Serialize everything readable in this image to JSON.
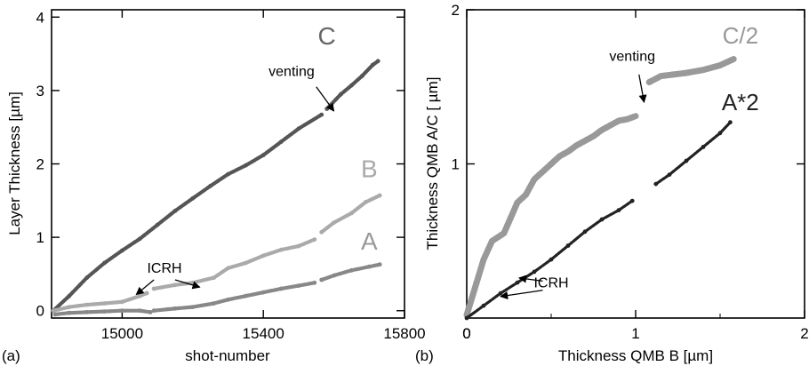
{
  "chart_data": [
    {
      "type": "scatter",
      "panel_label": "(a)",
      "xlabel": "shot-number",
      "ylabel": "Layer Thickness [µm]",
      "xlim": [
        14800,
        15800
      ],
      "ylim": [
        -0.1,
        4.1
      ],
      "xticks": [
        15000,
        15400,
        15800
      ],
      "yticks": [
        0,
        1,
        2,
        3,
        4
      ],
      "series": [
        {
          "name": "C",
          "color": "#555555",
          "segments": [
            [
              [
                14805,
                0.0
              ],
              [
                14850,
                0.2
              ],
              [
                14900,
                0.45
              ],
              [
                14950,
                0.65
              ],
              [
                15000,
                0.82
              ],
              [
                15050,
                0.98
              ],
              [
                15100,
                1.17
              ],
              [
                15150,
                1.36
              ],
              [
                15200,
                1.53
              ],
              [
                15250,
                1.7
              ],
              [
                15300,
                1.86
              ],
              [
                15350,
                1.98
              ],
              [
                15400,
                2.12
              ],
              [
                15450,
                2.3
              ],
              [
                15500,
                2.48
              ],
              [
                15565,
                2.67
              ]
            ],
            [
              [
                15580,
                2.75
              ],
              [
                15620,
                2.95
              ],
              [
                15650,
                3.07
              ],
              [
                15680,
                3.2
              ],
              [
                15710,
                3.35
              ],
              [
                15725,
                3.4
              ]
            ]
          ]
        },
        {
          "name": "B",
          "color": "#aaaaaa",
          "segments": [
            [
              [
                14805,
                0.0
              ],
              [
                14850,
                0.05
              ],
              [
                14900,
                0.08
              ],
              [
                14950,
                0.1
              ],
              [
                15000,
                0.12
              ],
              [
                15050,
                0.2
              ],
              [
                15070,
                0.24
              ]
            ],
            [
              [
                15090,
                0.3
              ],
              [
                15150,
                0.35
              ],
              [
                15200,
                0.38
              ],
              [
                15260,
                0.45
              ],
              [
                15300,
                0.58
              ],
              [
                15350,
                0.65
              ],
              [
                15400,
                0.75
              ],
              [
                15450,
                0.83
              ],
              [
                15500,
                0.88
              ],
              [
                15545,
                0.97
              ]
            ],
            [
              [
                15565,
                1.07
              ],
              [
                15600,
                1.2
              ],
              [
                15650,
                1.33
              ],
              [
                15690,
                1.48
              ],
              [
                15730,
                1.57
              ]
            ]
          ]
        },
        {
          "name": "A",
          "color": "#888888",
          "segments": [
            [
              [
                14810,
                -0.05
              ],
              [
                14850,
                -0.03
              ],
              [
                14900,
                -0.02
              ],
              [
                14950,
                -0.01
              ],
              [
                15000,
                0.0
              ],
              [
                15050,
                0.0
              ],
              [
                15080,
                -0.02
              ]
            ],
            [
              [
                15090,
                0.0
              ],
              [
                15150,
                0.03
              ],
              [
                15200,
                0.05
              ],
              [
                15260,
                0.1
              ],
              [
                15300,
                0.15
              ],
              [
                15350,
                0.2
              ],
              [
                15400,
                0.25
              ],
              [
                15450,
                0.3
              ],
              [
                15500,
                0.34
              ],
              [
                15545,
                0.38
              ]
            ],
            [
              [
                15565,
                0.42
              ],
              [
                15600,
                0.48
              ],
              [
                15650,
                0.55
              ],
              [
                15700,
                0.6
              ],
              [
                15730,
                0.63
              ]
            ]
          ]
        }
      ],
      "series_labels": [
        {
          "text": "C",
          "x": 15580,
          "y": 3.63,
          "color": "#666666"
        },
        {
          "text": "B",
          "x": 15700,
          "y": 1.82,
          "color": "#aaaaaa"
        },
        {
          "text": "A",
          "x": 15700,
          "y": 0.83,
          "color": "#999999"
        }
      ],
      "annotations": [
        {
          "text": "venting",
          "x": 15480,
          "y": 3.2,
          "arrows": [
            {
              "from": [
                15550,
                3.05
              ],
              "to": [
                15600,
                2.72
              ]
            }
          ]
        },
        {
          "text": "ICRH",
          "x": 15120,
          "y": 0.52,
          "arrows": [
            {
              "from": [
                15090,
                0.42
              ],
              "to": [
                15040,
                0.22
              ]
            },
            {
              "from": [
                15150,
                0.42
              ],
              "to": [
                15220,
                0.32
              ]
            }
          ]
        }
      ]
    },
    {
      "type": "scatter",
      "panel_label": "(b)",
      "xlabel": "Thickness QMB B [µm]",
      "ylabel": "Thickness QMB  A/C [ µm]",
      "xlim": [
        0,
        2
      ],
      "ylim": [
        0,
        2
      ],
      "xticks": [
        0,
        1,
        2
      ],
      "yticks": [
        1,
        2
      ],
      "series": [
        {
          "name": "C/2",
          "color": "#999999",
          "segments": [
            [
              [
                0.0,
                0.02
              ],
              [
                0.05,
                0.2
              ],
              [
                0.1,
                0.38
              ],
              [
                0.15,
                0.5
              ],
              [
                0.22,
                0.55
              ],
              [
                0.3,
                0.75
              ],
              [
                0.35,
                0.8
              ],
              [
                0.4,
                0.9
              ],
              [
                0.45,
                0.95
              ],
              [
                0.5,
                1.0
              ],
              [
                0.55,
                1.05
              ],
              [
                0.6,
                1.08
              ],
              [
                0.65,
                1.12
              ],
              [
                0.7,
                1.15
              ],
              [
                0.75,
                1.18
              ],
              [
                0.8,
                1.22
              ],
              [
                0.85,
                1.25
              ],
              [
                0.9,
                1.28
              ],
              [
                0.95,
                1.29
              ],
              [
                1.0,
                1.31
              ]
            ],
            [
              [
                1.08,
                1.53
              ],
              [
                1.15,
                1.57
              ],
              [
                1.3,
                1.59
              ],
              [
                1.4,
                1.61
              ],
              [
                1.5,
                1.64
              ],
              [
                1.58,
                1.68
              ]
            ]
          ]
        },
        {
          "name": "A*2",
          "color": "#222222",
          "segments": [
            [
              [
                0.0,
                0.0
              ],
              [
                0.1,
                0.08
              ],
              [
                0.2,
                0.16
              ],
              [
                0.3,
                0.23
              ],
              [
                0.4,
                0.3
              ],
              [
                0.5,
                0.38
              ],
              [
                0.6,
                0.47
              ],
              [
                0.7,
                0.56
              ],
              [
                0.8,
                0.64
              ],
              [
                0.9,
                0.7
              ],
              [
                0.98,
                0.76
              ]
            ],
            [
              [
                1.12,
                0.87
              ],
              [
                1.2,
                0.93
              ],
              [
                1.3,
                1.02
              ],
              [
                1.4,
                1.11
              ],
              [
                1.5,
                1.2
              ],
              [
                1.56,
                1.27
              ]
            ]
          ]
        }
      ],
      "series_labels": [
        {
          "text": "C/2",
          "x": 1.62,
          "y": 1.78,
          "color": "#999999"
        },
        {
          "text": "A*2",
          "x": 1.62,
          "y": 1.35,
          "color": "#222222"
        }
      ],
      "annotations": [
        {
          "text": "venting",
          "x": 0.98,
          "y": 1.67,
          "arrows": [
            {
              "from": [
                1.02,
                1.58
              ],
              "to": [
                1.05,
                1.4
              ]
            }
          ]
        },
        {
          "text": "ICRH",
          "x": 0.5,
          "y": 0.2,
          "arrows": [
            {
              "from": [
                0.45,
                0.24
              ],
              "to": [
                0.31,
                0.26
              ]
            },
            {
              "from": [
                0.45,
                0.18
              ],
              "to": [
                0.2,
                0.14
              ]
            }
          ]
        }
      ]
    }
  ]
}
